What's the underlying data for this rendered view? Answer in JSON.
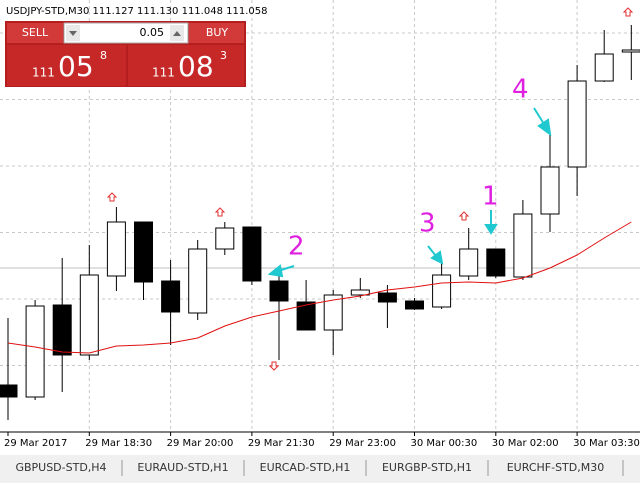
{
  "header": "USDJPY-STD,M30  111.127 111.130 111.048 111.058",
  "trade_panel": {
    "sell": "SELL",
    "lot": "0.05",
    "buy": "BUY",
    "bid": {
      "big_figure": "111",
      "pips": "05",
      "fraction": "8"
    },
    "ask": {
      "big_figure": "111",
      "pips": "08",
      "fraction": "3"
    }
  },
  "chart_data": {
    "type": "candlestick",
    "categories": [
      "29 Mar 2017",
      null,
      null,
      "29 Mar 18:30",
      null,
      null,
      "29 Mar 20:00",
      null,
      null,
      "29 Mar 21:30",
      null,
      null,
      "29 Mar 23:00",
      null,
      null,
      "30 Mar 00:30",
      null,
      null,
      "30 Mar 02:00",
      null,
      null,
      "30 Mar 03:30",
      null,
      null
    ],
    "open": [
      110.765,
      110.753,
      110.845,
      110.795,
      110.874,
      110.928,
      110.869,
      110.837,
      110.901,
      110.923,
      110.869,
      110.848,
      110.82,
      110.855,
      110.857,
      110.849,
      110.843,
      110.874,
      110.901,
      110.873,
      110.936,
      110.983,
      111.069,
      111.098
    ],
    "high": [
      110.832,
      110.85,
      110.892,
      110.905,
      110.943,
      110.928,
      110.89,
      110.91,
      110.928,
      110.923,
      110.878,
      110.87,
      110.86,
      110.872,
      110.865,
      110.852,
      110.89,
      110.922,
      110.901,
      110.95,
      111.015,
      111.085,
      111.12,
      111.125
    ],
    "low": [
      110.73,
      110.75,
      110.758,
      110.79,
      110.859,
      110.85,
      110.805,
      110.83,
      110.895,
      110.865,
      110.79,
      110.82,
      110.795,
      110.852,
      110.822,
      110.84,
      110.841,
      110.87,
      110.872,
      110.87,
      110.918,
      110.954,
      111.068,
      111.07
    ],
    "close": [
      110.753,
      110.844,
      110.795,
      110.875,
      110.928,
      110.868,
      110.838,
      110.901,
      110.922,
      110.869,
      110.849,
      110.82,
      110.855,
      110.86,
      110.848,
      110.841,
      110.875,
      110.901,
      110.874,
      110.936,
      110.983,
      111.069,
      111.096,
      111.1
    ],
    "ma": {
      "color": "#e01010",
      "values": [
        110.807,
        110.803,
        110.798,
        110.797,
        110.804,
        110.805,
        110.807,
        110.812,
        110.824,
        110.833,
        110.839,
        110.845,
        110.85,
        110.854,
        110.86,
        110.863,
        110.867,
        110.868,
        110.867,
        110.872,
        110.882,
        110.895,
        110.912,
        110.928
      ]
    },
    "price_line": 110.882,
    "ylim": [
      110.72,
      111.15
    ],
    "grid": true,
    "annotations": [
      "1",
      "2",
      "3",
      "4"
    ]
  },
  "tabs": [
    "GBPUSD-STD,H4",
    "EURAUD-STD,H1",
    "EURCAD-STD,H1",
    "EURGBP-STD,H1",
    "EURCHF-STD,M30"
  ]
}
